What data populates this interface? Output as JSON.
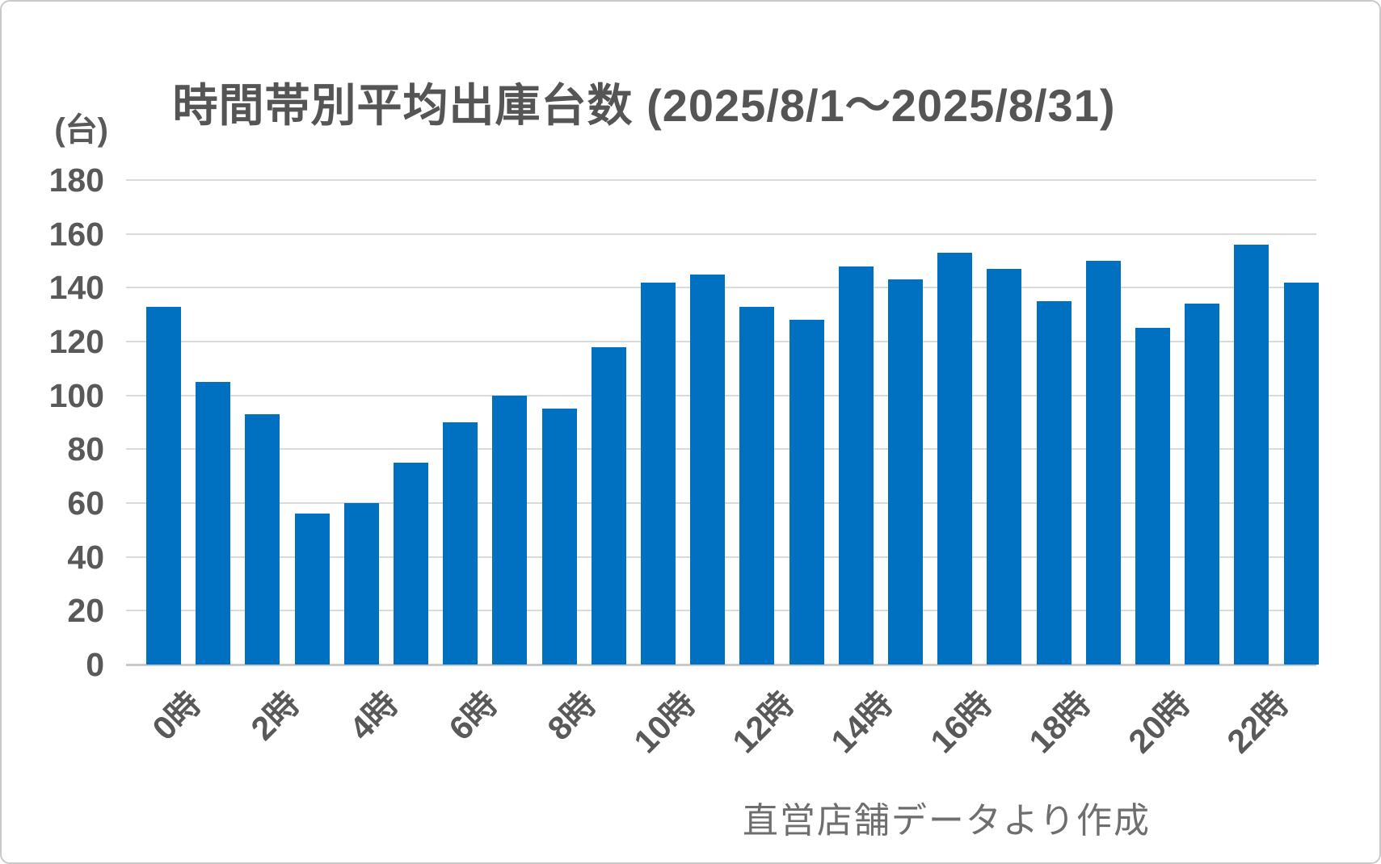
{
  "chart_data": {
    "type": "bar",
    "title": "時間帯別平均出庫台数 (2025/8/1～2025/8/31)",
    "unit_label": "(台)",
    "source_note": "直営店舗データより作成",
    "categories": [
      "0時",
      "1時",
      "2時",
      "3時",
      "4時",
      "5時",
      "6時",
      "7時",
      "8時",
      "9時",
      "10時",
      "11時",
      "12時",
      "13時",
      "14時",
      "15時",
      "16時",
      "17時",
      "18時",
      "19時",
      "20時",
      "21時",
      "22時",
      "23時"
    ],
    "values": [
      133,
      105,
      93,
      56,
      60,
      75,
      90,
      100,
      95,
      118,
      142,
      145,
      133,
      128,
      148,
      143,
      153,
      147,
      135,
      150,
      125,
      134,
      156,
      142
    ],
    "x_axis_labeled_categories": [
      "0時",
      "2時",
      "4時",
      "6時",
      "8時",
      "10時",
      "12時",
      "14時",
      "16時",
      "18時",
      "20時",
      "22時"
    ],
    "xlabel": "",
    "ylabel": "台",
    "ylim": [
      0,
      180
    ],
    "y_tick_step": 20,
    "grid": true,
    "legend": false,
    "bar_color": "#0070C0",
    "gridline_color": "#DADADA",
    "axis_line_color": "#C9C9C9",
    "label_color": "#595959",
    "title_color": "#555555",
    "source_note_color": "#6E6E6E"
  }
}
